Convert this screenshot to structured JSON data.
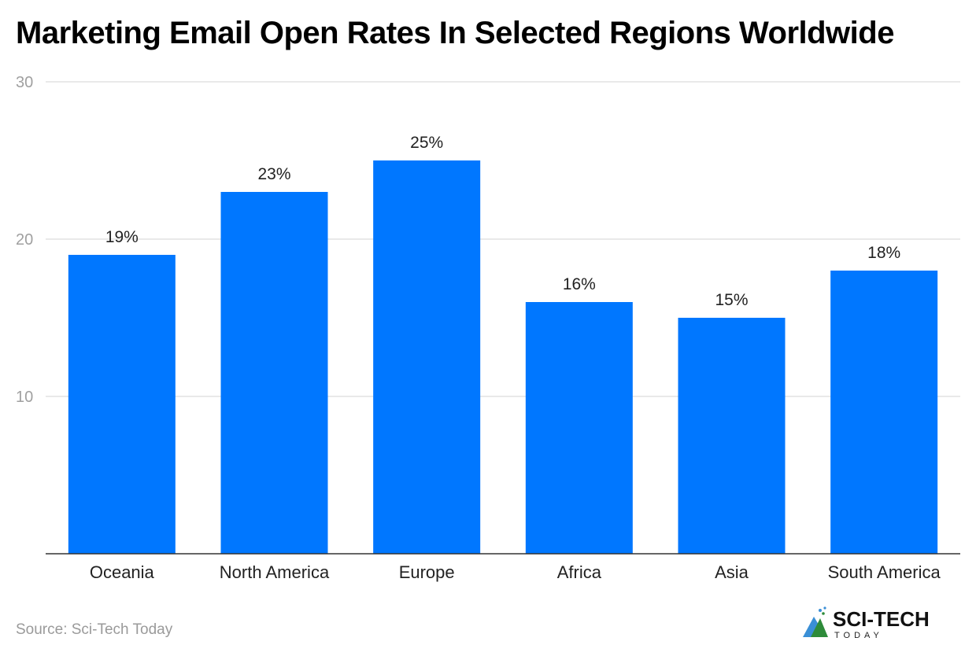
{
  "chart_data": {
    "type": "bar",
    "title": "Marketing Email Open Rates In Selected Regions Worldwide",
    "categories": [
      "Oceania",
      "North America",
      "Europe",
      "Africa",
      "Asia",
      "South America"
    ],
    "values": [
      19,
      23,
      25,
      16,
      15,
      18
    ],
    "data_labels": [
      "19%",
      "23%",
      "25%",
      "16%",
      "15%",
      "18%"
    ],
    "ylim": [
      0,
      30
    ],
    "yticks": [
      10,
      20,
      30
    ],
    "grid": true,
    "legend": "none",
    "bar_color": "#0077ff"
  },
  "source": "Source: Sci-Tech Today",
  "logo": {
    "text": "SCI-TECH",
    "subtext": "TODAY"
  }
}
